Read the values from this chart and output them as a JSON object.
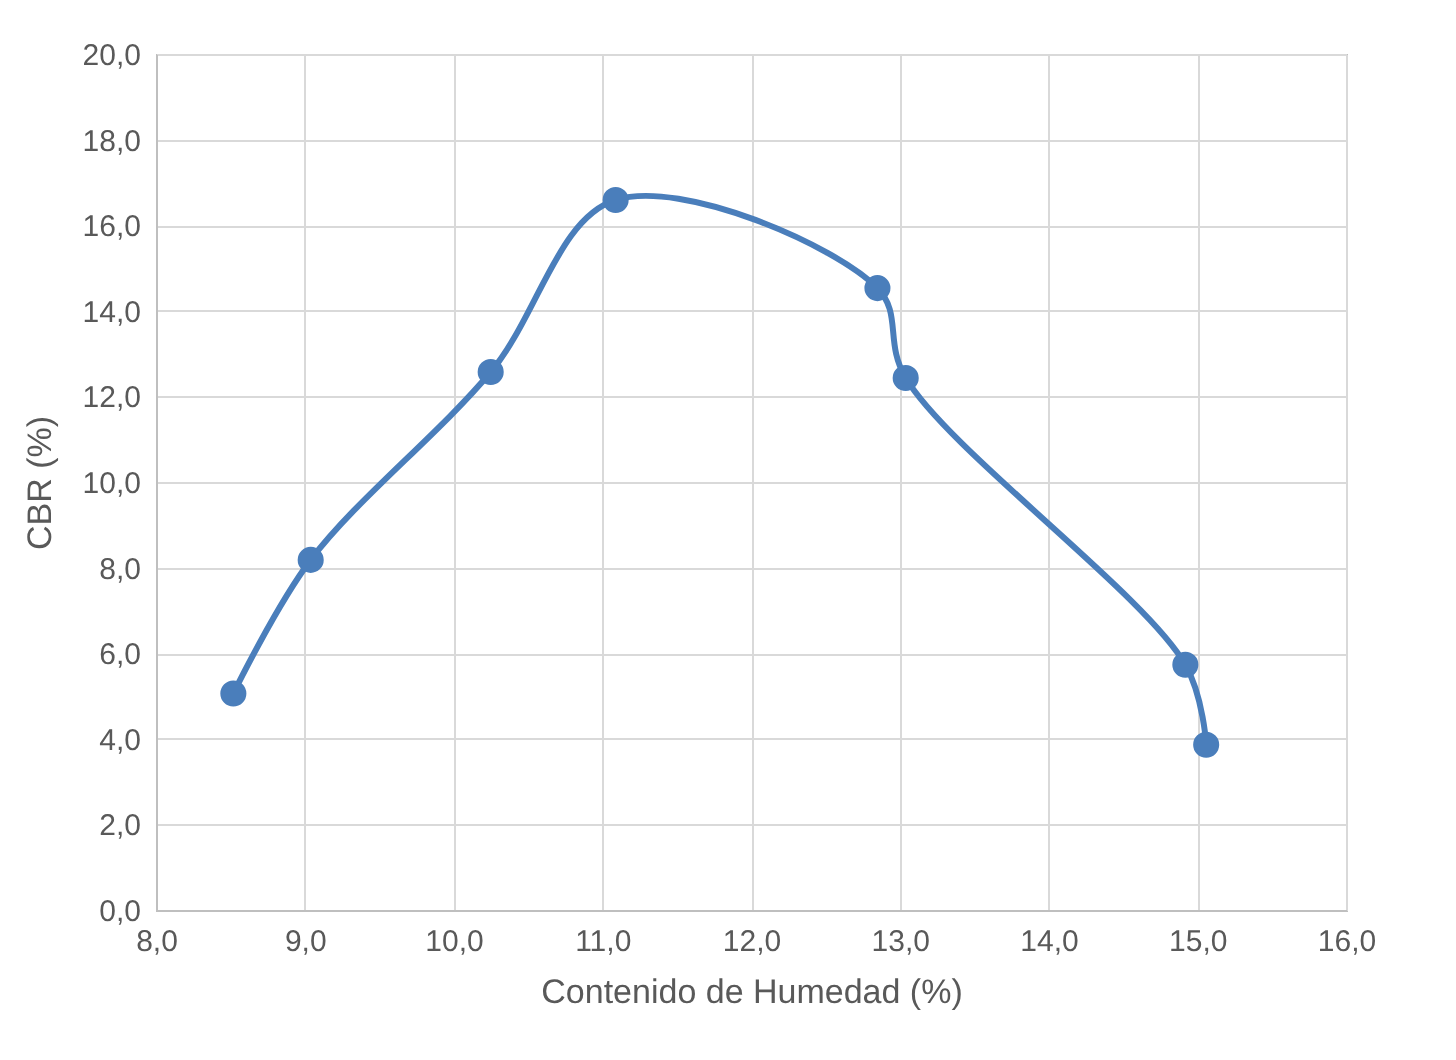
{
  "chart_data": {
    "type": "line",
    "xlabel": "Contenido de Humedad (%)",
    "ylabel": "CBR (%)",
    "x": [
      8.52,
      9.04,
      10.25,
      11.09,
      12.85,
      13.04,
      14.92,
      15.06
    ],
    "series": [
      {
        "color": "#4a7ebb",
        "values": [
          5.06,
          8.18,
          12.57,
          16.59,
          14.53,
          12.43,
          5.73,
          3.86
        ]
      }
    ],
    "xlim": [
      8,
      16
    ],
    "ylim": [
      0,
      20
    ],
    "xticks": [
      {
        "value": 8,
        "label": "8,0"
      },
      {
        "value": 9,
        "label": "9,0"
      },
      {
        "value": 10,
        "label": "10,0"
      },
      {
        "value": 11,
        "label": "11,0"
      },
      {
        "value": 12,
        "label": "12,0"
      },
      {
        "value": 13,
        "label": "13,0"
      },
      {
        "value": 14,
        "label": "14,0"
      },
      {
        "value": 15,
        "label": "15,0"
      },
      {
        "value": 16,
        "label": "16,0"
      }
    ],
    "yticks": [
      {
        "value": 0,
        "label": "0,0"
      },
      {
        "value": 2,
        "label": "2,0"
      },
      {
        "value": 4,
        "label": "4,0"
      },
      {
        "value": 6,
        "label": "6,0"
      },
      {
        "value": 8,
        "label": "8,0"
      },
      {
        "value": 10,
        "label": "10,0"
      },
      {
        "value": 12,
        "label": "12,0"
      },
      {
        "value": 14,
        "label": "14,0"
      },
      {
        "value": 16,
        "label": "16,0"
      },
      {
        "value": 18,
        "label": "18,0"
      },
      {
        "value": 20,
        "label": "20,0"
      }
    ],
    "grid": true,
    "marker": "circle",
    "line_style": "solid"
  }
}
